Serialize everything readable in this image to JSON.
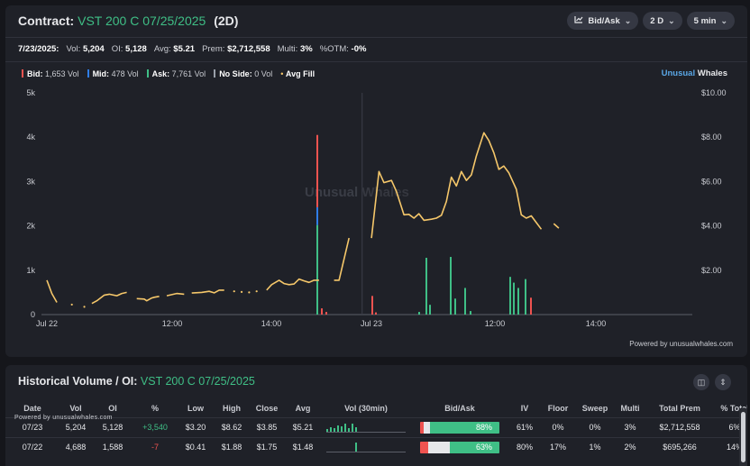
{
  "header": {
    "label": "Contract:",
    "contract": "VST 200 C 07/25/2025",
    "period_tag": "(2D)",
    "controls": [
      {
        "label": "Bid/Ask",
        "icon": "chart-type-icon"
      },
      {
        "label": "2 D"
      },
      {
        "label": "5 min"
      }
    ]
  },
  "stats": {
    "date": "7/23/2025:",
    "vol_label": "Vol:",
    "vol": "5,204",
    "oi_label": "OI:",
    "oi": "5,128",
    "avg_label": "Avg:",
    "avg": "$5.21",
    "prem_label": "Prem:",
    "prem": "$2,712,558",
    "multi_label": "Multi:",
    "multi": "3%",
    "otm_label": "%OTM:",
    "otm": "-0%"
  },
  "legend": [
    {
      "label": "Bid:",
      "value": "1,653 Vol",
      "color": "#ef5350"
    },
    {
      "label": "Mid:",
      "value": "478 Vol",
      "color": "#2f7ee8"
    },
    {
      "label": "Ask:",
      "value": "7,761 Vol",
      "color": "#3fbf86"
    },
    {
      "label": "No Side:",
      "value": "0 Vol",
      "color": "#9aa0aa"
    },
    {
      "label": "Avg Fill",
      "value": "",
      "color": "#f5c76a"
    }
  ],
  "brand": {
    "a": "Unusual",
    "b": " Whales"
  },
  "watermark": {
    "a": "Unusual",
    "b": " Whales"
  },
  "powered": "Powered by unusualwhales.com",
  "chart_data": {
    "type": "bar+line",
    "left_axis_ticks": [
      "5k",
      "4k",
      "3k",
      "2k",
      "1k",
      "0"
    ],
    "right_axis_ticks": [
      "$10.00",
      "$8.00",
      "$6.00",
      "$4.00",
      "$2.00"
    ],
    "x_ticks": [
      "Jul 22",
      "12:00",
      "14:00",
      "Jul 23",
      "12:00",
      "14:00"
    ],
    "volume_bars": [
      {
        "t": "Jul 22 15:20",
        "ask": 2020,
        "mid": 400,
        "bid": 1630
      },
      {
        "t": "Jul 22 15:30",
        "bid": 140
      },
      {
        "t": "Jul 22 15:40",
        "bid": 60
      },
      {
        "t": "Jul 23 09:35",
        "bid": 420
      },
      {
        "t": "Jul 23 09:40",
        "bid": 50
      },
      {
        "t": "Jul 23 10:30",
        "ask": 60
      },
      {
        "t": "Jul 23 10:45",
        "ask": 1280
      },
      {
        "t": "Jul 23 11:00",
        "ask": 220
      },
      {
        "t": "Jul 23 11:10",
        "ask": 1300
      },
      {
        "t": "Jul 23 11:20",
        "ask": 360
      },
      {
        "t": "Jul 23 11:35",
        "ask": 600
      },
      {
        "t": "Jul 23 11:45",
        "ask": 80
      },
      {
        "t": "Jul 23 12:10",
        "ask": 850
      },
      {
        "t": "Jul 23 12:15",
        "ask": 720
      },
      {
        "t": "Jul 23 12:20",
        "ask": 600
      },
      {
        "t": "Jul 23 12:30",
        "ask": 800
      },
      {
        "t": "Jul 23 12:40",
        "bid": 380
      }
    ],
    "avg_fill_segments": [
      [
        [
          0.0,
          1.55
        ],
        [
          0.2,
          0.95
        ],
        [
          0.4,
          0.55
        ]
      ],
      [
        [
          1.0,
          0.45
        ]
      ],
      [
        [
          1.5,
          0.35
        ]
      ],
      [
        [
          1.8,
          0.5
        ],
        [
          2.0,
          0.62
        ],
        [
          2.3,
          0.88
        ],
        [
          2.5,
          0.92
        ],
        [
          2.8,
          0.85
        ],
        [
          3.0,
          0.95
        ],
        [
          3.2,
          1.0
        ]
      ],
      [
        [
          3.6,
          0.72
        ],
        [
          3.9,
          0.7
        ],
        [
          4.0,
          0.62
        ],
        [
          4.2,
          0.75
        ],
        [
          4.3,
          0.78
        ],
        [
          4.5,
          0.82
        ]
      ],
      [
        [
          4.8,
          0.85
        ],
        [
          5.0,
          0.9
        ],
        [
          5.2,
          0.95
        ],
        [
          5.5,
          0.92
        ]
      ],
      [
        [
          5.8,
          0.97
        ],
        [
          6.2,
          1.0
        ],
        [
          6.5,
          1.05
        ],
        [
          6.7,
          0.98
        ],
        [
          6.9,
          1.1
        ],
        [
          7.1,
          1.1
        ]
      ],
      [
        [
          7.5,
          1.05
        ]
      ],
      [
        [
          7.8,
          1.02
        ]
      ],
      [
        [
          8.1,
          1.0
        ]
      ],
      [
        [
          8.4,
          1.05
        ]
      ],
      [
        [
          8.8,
          1.1
        ],
        [
          9.0,
          1.35
        ],
        [
          9.3,
          1.55
        ],
        [
          9.5,
          1.4
        ],
        [
          9.7,
          1.35
        ],
        [
          9.9,
          1.38
        ],
        [
          10.1,
          1.6
        ],
        [
          10.3,
          1.52
        ],
        [
          10.5,
          1.45
        ],
        [
          10.7,
          1.55
        ],
        [
          10.9,
          1.55
        ]
      ],
      [
        [
          11.5,
          1.55
        ],
        [
          11.7,
          1.55
        ],
        [
          12.1,
          3.45
        ]
      ],
      [
        [
          13.0,
          3.45
        ],
        [
          13.3,
          6.45
        ],
        [
          13.5,
          5.95
        ],
        [
          13.8,
          6.05
        ],
        [
          14.0,
          5.55
        ],
        [
          14.3,
          4.5
        ],
        [
          14.5,
          4.52
        ],
        [
          14.7,
          4.35
        ],
        [
          14.9,
          4.55
        ],
        [
          15.1,
          4.25
        ],
        [
          15.4,
          4.3
        ],
        [
          15.6,
          4.35
        ],
        [
          15.8,
          4.48
        ],
        [
          16.0,
          5.1
        ],
        [
          16.2,
          6.2
        ],
        [
          16.4,
          5.8
        ],
        [
          16.6,
          6.45
        ],
        [
          16.8,
          6.05
        ],
        [
          17.0,
          6.3
        ],
        [
          17.2,
          7.15
        ],
        [
          17.5,
          8.2
        ],
        [
          17.7,
          7.85
        ],
        [
          17.9,
          7.3
        ],
        [
          18.1,
          6.55
        ],
        [
          18.3,
          6.7
        ],
        [
          18.5,
          6.4
        ],
        [
          18.8,
          5.65
        ],
        [
          19.0,
          4.5
        ],
        [
          19.2,
          4.35
        ],
        [
          19.4,
          4.45
        ],
        [
          19.6,
          4.15
        ],
        [
          19.8,
          3.85
        ]
      ],
      [
        [
          20.3,
          4.1
        ],
        [
          20.5,
          3.9
        ]
      ]
    ]
  },
  "table": {
    "title": "Historical Volume / OI:",
    "contract": "VST 200 C 07/25/2025",
    "powered": "Powered by unusualwhales.com",
    "columns": [
      "Date",
      "Vol",
      "OI",
      "%",
      "Low",
      "High",
      "Close",
      "Avg",
      "Vol (30min)",
      "Bid/Ask",
      "IV",
      "Floor",
      "Sweep",
      "Multi",
      "Total Prem",
      "% Total"
    ],
    "rows": [
      {
        "date": "07/23",
        "vol": "5,204",
        "oi": "5,128",
        "chg": "+3,540",
        "low": "$3.20",
        "high": "$8.62",
        "close": "$3.85",
        "avg": "$5.21",
        "spark": [
          0.25,
          0.4,
          0.3,
          0.55,
          0.5,
          0.8,
          0.3,
          0.75,
          0.45
        ],
        "bid_frac": 0.05,
        "mid_frac": 0.07,
        "ask_pct": "88%",
        "iv": "61%",
        "floor": "0%",
        "sweep": "0%",
        "multi": "3%",
        "prem": "$2,712,558",
        "pct_total": "6%"
      },
      {
        "date": "07/22",
        "vol": "4,688",
        "oi": "1,588",
        "chg": "-7",
        "low": "$0.41",
        "high": "$1.88",
        "close": "$1.75",
        "avg": "$1.48",
        "spark": [
          0,
          0,
          0,
          0,
          0,
          0,
          0,
          0,
          0.9
        ],
        "bid_frac": 0.1,
        "mid_frac": 0.27,
        "ask_pct": "63%",
        "iv": "80%",
        "floor": "17%",
        "sweep": "1%",
        "multi": "2%",
        "prem": "$695,266",
        "pct_total": "14%"
      }
    ]
  }
}
